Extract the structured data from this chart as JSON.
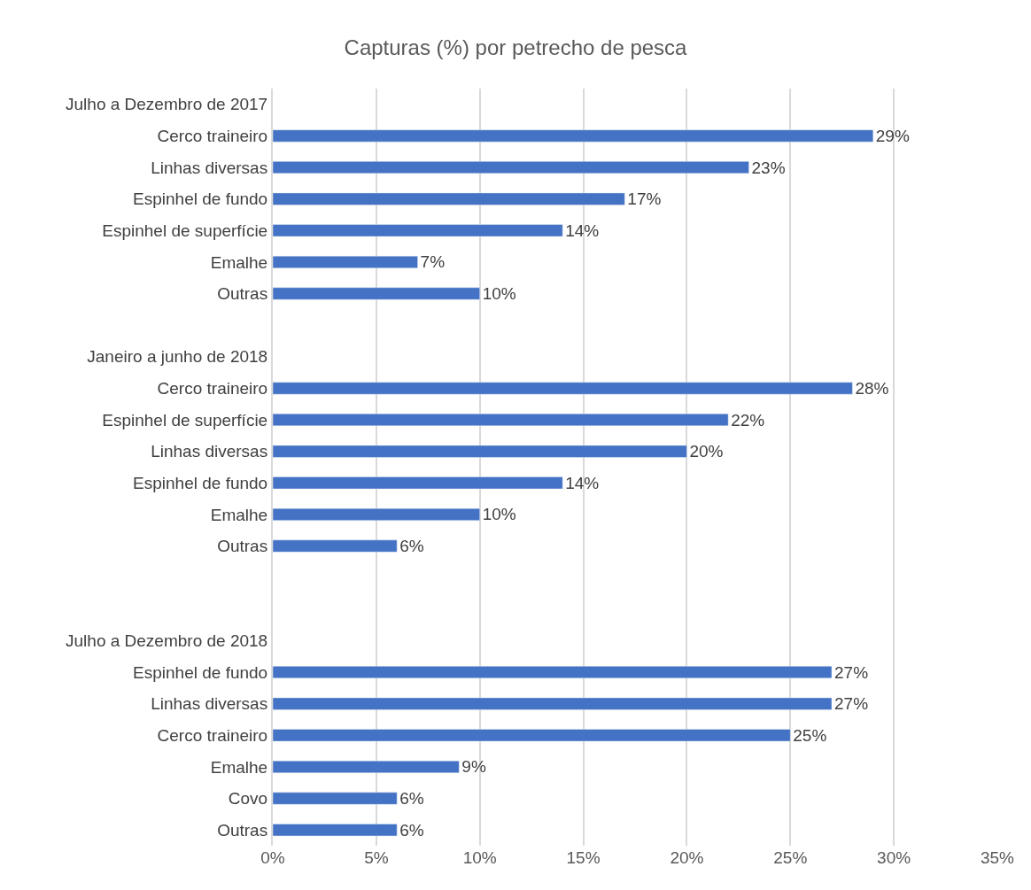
{
  "chart_data": {
    "type": "bar",
    "orientation": "horizontal",
    "title": "Capturas (%) por petrecho de pesca",
    "categories": [
      "Julho a Dezembro de 2017",
      "Cerco traineiro",
      "Linhas diversas",
      "Espinhel de fundo",
      "Espinhel de superfície",
      "Emalhe",
      "Outras",
      null,
      "Janeiro a junho de 2018",
      "Cerco traineiro",
      "Espinhel de superfície",
      "Linhas diversas",
      "Espinhel de fundo",
      "Emalhe",
      "Outras",
      null,
      null,
      "Julho a Dezembro de 2018",
      "Espinhel de fundo",
      "Linhas diversas",
      "Cerco traineiro",
      "Emalhe",
      "Covo",
      "Outras"
    ],
    "values": [
      null,
      29,
      23,
      17,
      14,
      7,
      10,
      null,
      null,
      28,
      22,
      20,
      14,
      10,
      6,
      null,
      null,
      null,
      27,
      27,
      25,
      9,
      6,
      6
    ],
    "value_labels": [
      null,
      "29%",
      "23%",
      "17%",
      "14%",
      "7%",
      "10%",
      null,
      null,
      "28%",
      "22%",
      "20%",
      "14%",
      "10%",
      "6%",
      null,
      null,
      null,
      "27%",
      "27%",
      "25%",
      "9%",
      "6%",
      "6%"
    ],
    "color": "#4472c4",
    "xlim": [
      0,
      35
    ],
    "xticks": [
      {
        "value": 0,
        "label": "0%"
      },
      {
        "value": 5,
        "label": "5%"
      },
      {
        "value": 10,
        "label": "10%"
      },
      {
        "value": 15,
        "label": "15%"
      },
      {
        "value": 20,
        "label": "20%"
      },
      {
        "value": 25,
        "label": "25%"
      },
      {
        "value": 30,
        "label": "30%"
      },
      {
        "value": 35,
        "label": "35%"
      }
    ],
    "grid": "x"
  }
}
